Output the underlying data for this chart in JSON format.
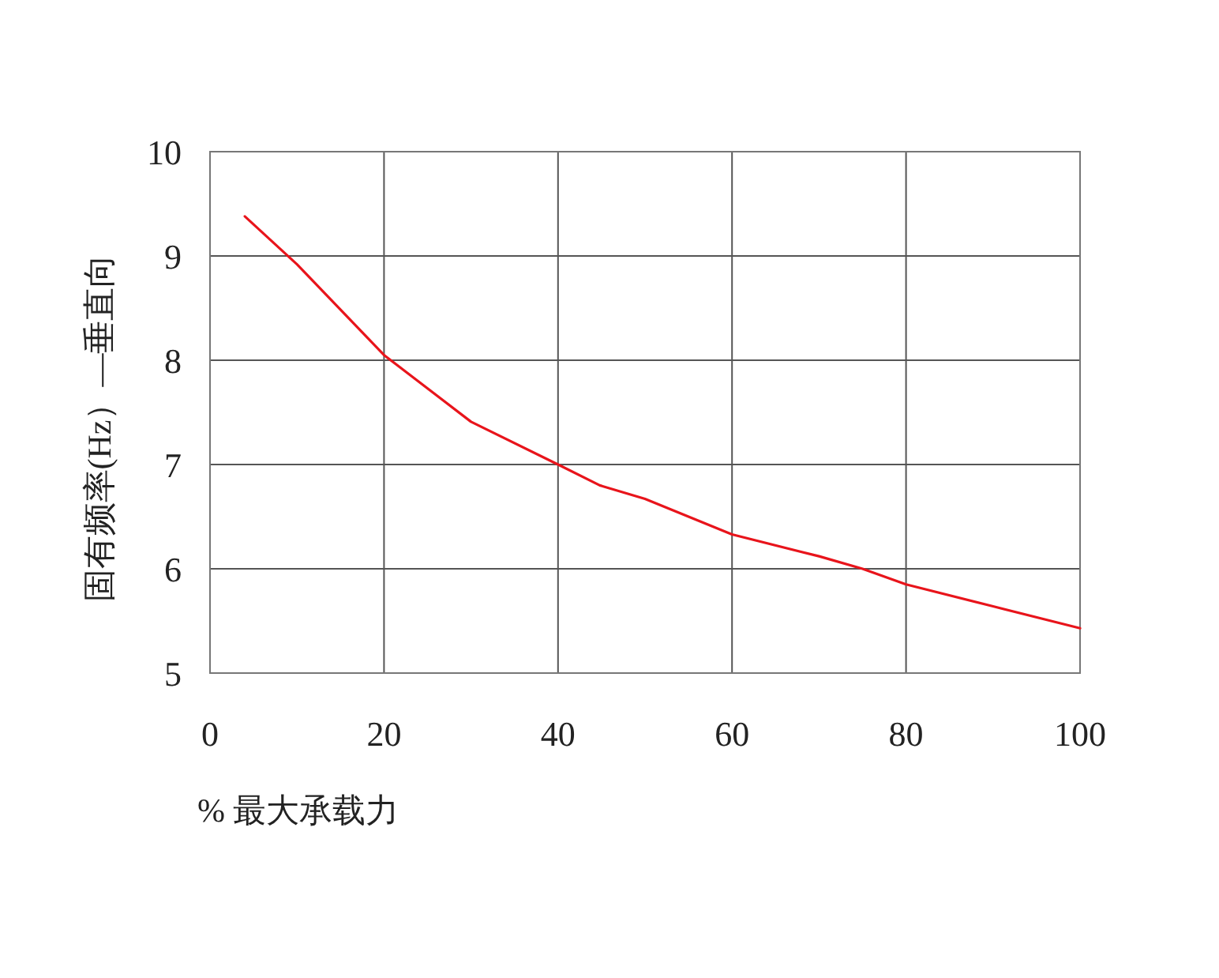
{
  "chart_data": {
    "type": "line",
    "xlabel": "% 最大承载力",
    "ylabel": "固有频率(Hz）—垂直向",
    "x": [
      4,
      10,
      20,
      30,
      40,
      44.8,
      50,
      60,
      70,
      75,
      80,
      90,
      100
    ],
    "series": [
      {
        "color": "#e8141b",
        "values": [
          9.38,
          8.92,
          8.05,
          7.41,
          7.0,
          6.8,
          6.67,
          6.33,
          6.12,
          6.0,
          5.85,
          5.64,
          5.43
        ]
      }
    ],
    "xlim": [
      0,
      100
    ],
    "xticks": [
      0,
      20,
      40,
      60,
      80,
      100
    ],
    "ylim": [
      5,
      10
    ],
    "yticks": [
      5,
      6,
      7,
      8,
      9,
      10
    ],
    "grid": true,
    "marker": "none",
    "line_style": "solid"
  }
}
